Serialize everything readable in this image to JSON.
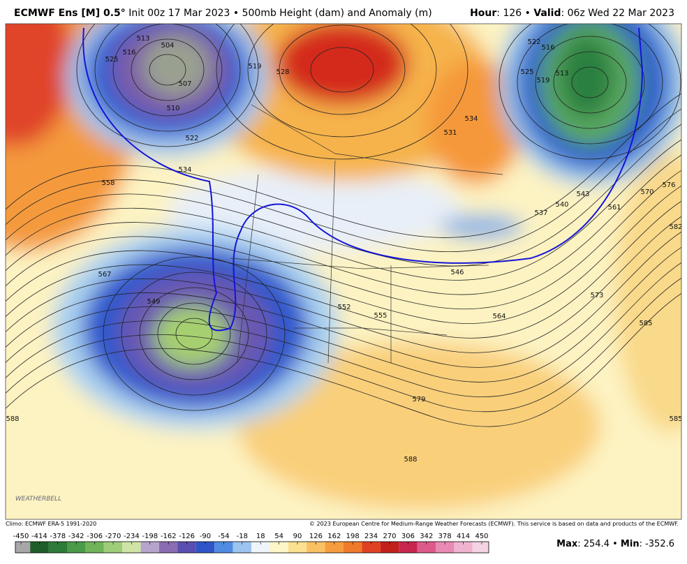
{
  "header": {
    "model": "ECMWF Ens [M] 0.5°",
    "init": "Init 00z 17 Mar 2023 • 500mb Height (dam) and Anomaly (m)",
    "hour_label": "Hour",
    "hour_value": ": 126 •",
    "valid_label": "Valid",
    "valid_value": ": 06z Wed 22 Mar 2023"
  },
  "map": {
    "logo_text": "WEATHERBELL",
    "contour_labels": [
      "525",
      "516",
      "513",
      "504",
      "507",
      "510",
      "522",
      "519",
      "528",
      "534",
      "558",
      "567",
      "549",
      "552",
      "555",
      "564",
      "579",
      "588",
      "588",
      "546",
      "534",
      "531",
      "516",
      "522",
      "525",
      "519",
      "513",
      "537",
      "540",
      "543",
      "561",
      "570",
      "576",
      "582",
      "573",
      "585",
      "585"
    ]
  },
  "footer": {
    "climo": "Climo: ECMWF ERA-5 1991-2020",
    "copyright": "© 2023 European Centre for Medium-Range Weather Forecasts (ECMWF). This service is based on data and products of the ECMWF."
  },
  "colorbar": {
    "ticks": [
      -450,
      -414,
      -378,
      -342,
      -306,
      -270,
      -234,
      -198,
      -162,
      -126,
      -90,
      -54,
      -18,
      18,
      54,
      90,
      126,
      162,
      198,
      234,
      270,
      306,
      342,
      378,
      414,
      450
    ],
    "colors": [
      "#a7a7a7",
      "#1f5e2a",
      "#2e7b3a",
      "#4a9a48",
      "#70b35a",
      "#9fcc78",
      "#cfe3a6",
      "#b7a4cc",
      "#8a6cb2",
      "#5a4fb0",
      "#2f55c8",
      "#4f8be0",
      "#9cc4ef",
      "#eef4fb",
      "#fdf6c8",
      "#fbe08f",
      "#f9c064",
      "#f59d3e",
      "#ef7a2a",
      "#df4222",
      "#c2201a",
      "#c8264e",
      "#db5a8a",
      "#e98ab4",
      "#efb3d0",
      "#f3d3e4"
    ]
  },
  "stats": {
    "max_label": "Max",
    "max_value": ": 254.4 •",
    "min_label": "Min",
    "min_value": ": -352.6"
  }
}
